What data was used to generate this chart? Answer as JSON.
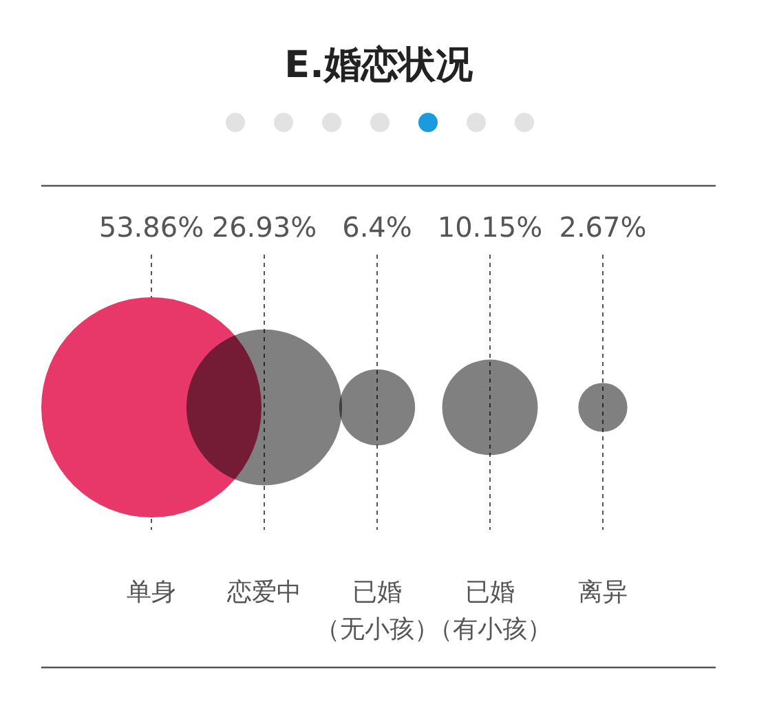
{
  "chart_data": {
    "type": "other",
    "title": "E.婚恋状况",
    "categories": [
      "单身",
      "恋爱中",
      "已婚（无小孩）",
      "已婚（有小孩）",
      "离异"
    ],
    "values": [
      53.86,
      26.93,
      6.4,
      10.15,
      2.67
    ],
    "value_labels": [
      "53.86%",
      "26.93%",
      "6.4%",
      "10.15%",
      "2.67%"
    ],
    "colors": [
      "#e8386a",
      "#808080",
      "#808080",
      "#808080",
      "#808080"
    ]
  }
}
